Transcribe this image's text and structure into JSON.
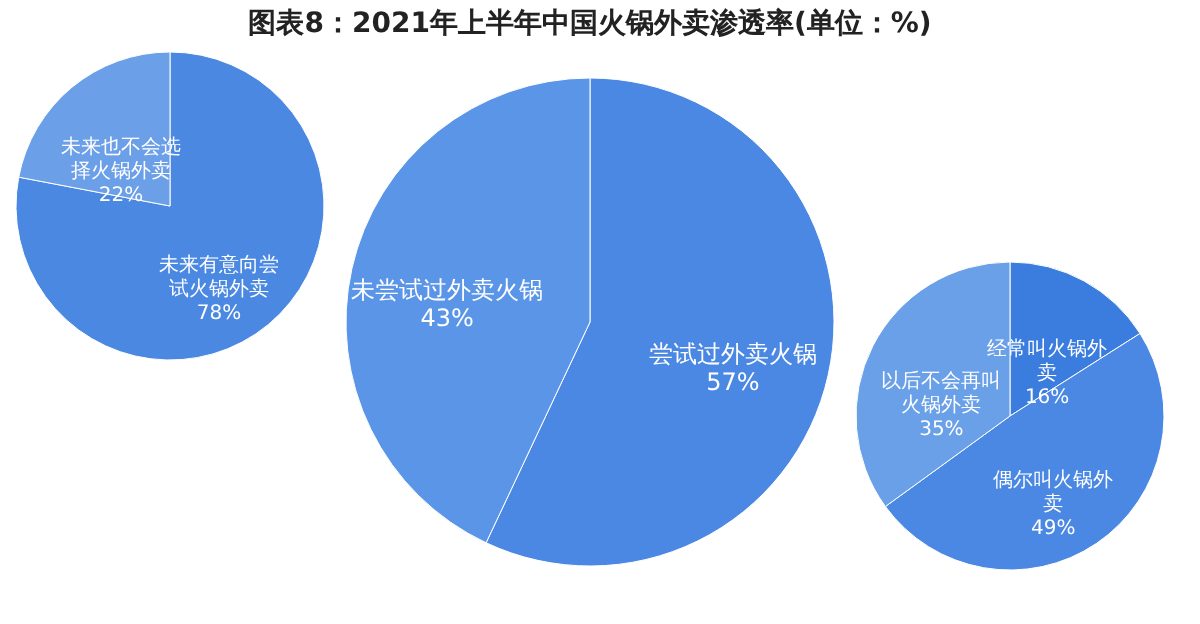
{
  "chart_data": [
    {
      "type": "pie",
      "title": "图表8：2021年上半年中国火锅外卖渗透率(单位：%)",
      "categories": [
        "未来有意向尝试火锅外卖",
        "未来也不会选择火锅外卖"
      ],
      "values": [
        78,
        22
      ],
      "value_labels": [
        "78%",
        "22%"
      ],
      "colors": [
        "#4a88e2",
        "#6b9fe8"
      ]
    },
    {
      "type": "pie",
      "categories": [
        "尝试过外卖火锅",
        "未尝试过外卖火锅"
      ],
      "values": [
        57,
        43
      ],
      "value_labels": [
        "57%",
        "43%"
      ],
      "colors": [
        "#4a88e4",
        "#5b95e8"
      ]
    },
    {
      "type": "pie",
      "categories": [
        "经常叫火锅外卖",
        "偶尔叫火锅外卖",
        "以后不会再叫火锅外卖"
      ],
      "values": [
        16,
        49,
        35
      ],
      "value_labels": [
        "16%",
        "49%",
        "35%"
      ],
      "colors": [
        "#3a7ddf",
        "#4a88e4",
        "#6aa0e8"
      ]
    }
  ]
}
